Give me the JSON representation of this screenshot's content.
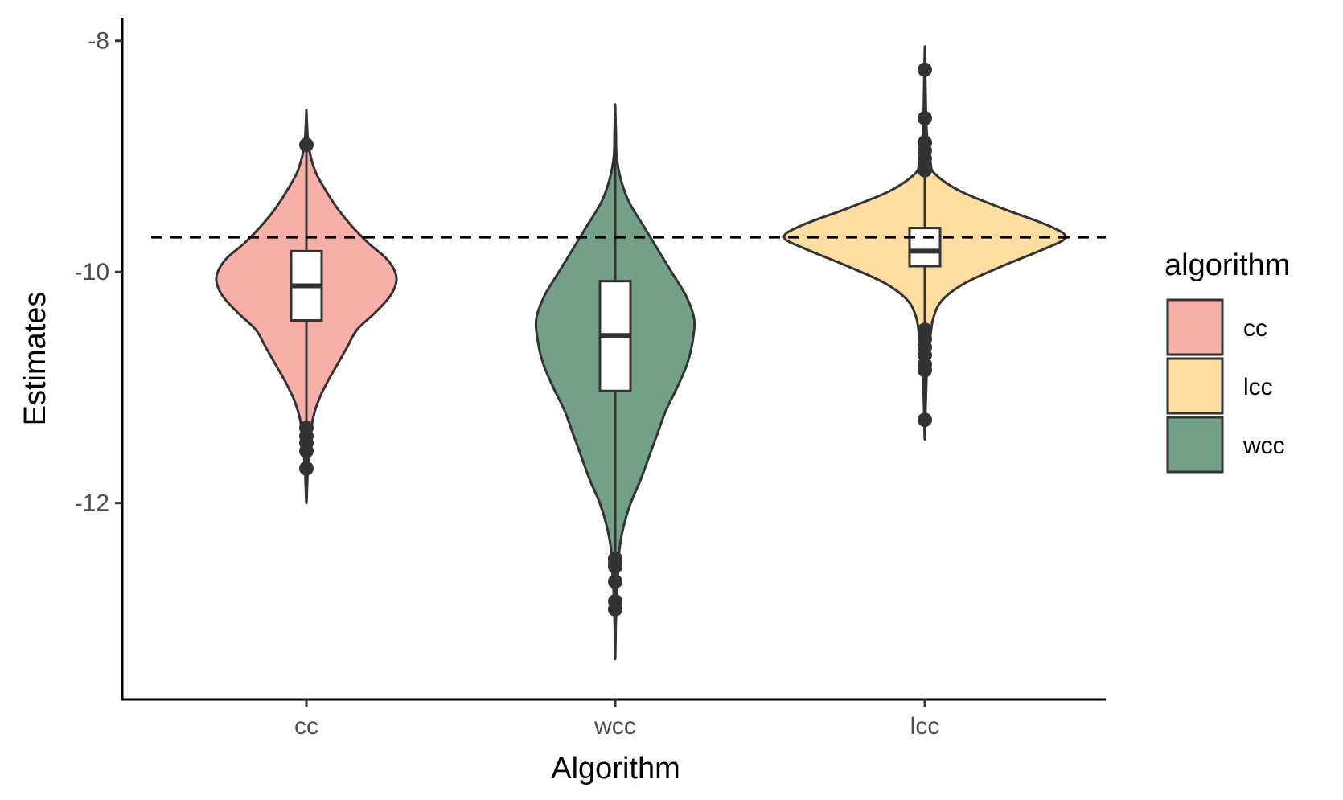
{
  "chart_data": {
    "type": "violin",
    "xlabel": "Algorithm",
    "ylabel": "Estimates",
    "categories": [
      "cc",
      "wcc",
      "lcc"
    ],
    "yticks": [
      -8,
      -10,
      -12
    ],
    "yticks_labels": [
      "-8",
      "-10",
      "-12"
    ],
    "ylim": [
      -13.7,
      -7.8
    ],
    "reference_line": {
      "y": -9.7,
      "style": "dashed"
    },
    "grid": false,
    "legend": {
      "title": "algorithm",
      "position": "right",
      "entries": [
        {
          "label": "cc",
          "color": "#F8AFA8"
        },
        {
          "label": "lcc",
          "color": "#FDDDA0"
        },
        {
          "label": "wcc",
          "color": "#74A089"
        }
      ]
    },
    "series": [
      {
        "category": "cc",
        "color": "#F8AFA8",
        "violin": {
          "y": [
            -8.6,
            -8.85,
            -9.0,
            -9.15,
            -9.3,
            -9.45,
            -9.6,
            -9.75,
            -9.9,
            -10.05,
            -10.2,
            -10.35,
            -10.5,
            -10.65,
            -10.8,
            -10.95,
            -11.1,
            -11.25,
            -11.4,
            -11.55,
            -11.7,
            -11.85,
            -12.0
          ],
          "half_width": [
            0.0,
            0.01,
            0.03,
            0.07,
            0.14,
            0.22,
            0.32,
            0.44,
            0.58,
            0.64,
            0.6,
            0.49,
            0.36,
            0.29,
            0.22,
            0.15,
            0.09,
            0.05,
            0.03,
            0.02,
            0.01,
            0.005,
            0.0
          ]
        },
        "box": {
          "q1": -10.42,
          "median": -10.12,
          "q3": -9.82
        },
        "whisker": {
          "min": -12.0,
          "max": -8.6
        },
        "outliers": [
          -8.9,
          -11.35,
          -11.42,
          -11.48,
          -11.55,
          -11.7
        ]
      },
      {
        "category": "wcc",
        "color": "#74A089",
        "violin": {
          "y": [
            -8.55,
            -8.8,
            -9.0,
            -9.2,
            -9.4,
            -9.6,
            -9.8,
            -10.0,
            -10.2,
            -10.4,
            -10.6,
            -10.8,
            -11.0,
            -11.2,
            -11.4,
            -11.6,
            -11.8,
            -12.0,
            -12.2,
            -12.4,
            -12.6,
            -12.8,
            -13.0,
            -13.2,
            -13.35
          ],
          "half_width": [
            0.0,
            0.005,
            0.01,
            0.04,
            0.1,
            0.2,
            0.3,
            0.4,
            0.5,
            0.56,
            0.55,
            0.51,
            0.44,
            0.36,
            0.3,
            0.24,
            0.18,
            0.11,
            0.06,
            0.03,
            0.02,
            0.01,
            0.005,
            0.002,
            0.0
          ]
        },
        "box": {
          "q1": -11.03,
          "median": -10.55,
          "q3": -10.08
        },
        "whisker": {
          "min": -13.35,
          "max": -8.55
        },
        "outliers": [
          -12.48,
          -12.52,
          -12.55,
          -12.68,
          -12.85,
          -12.92
        ]
      },
      {
        "category": "lcc",
        "color": "#FDDDA0",
        "violin": {
          "y": [
            -8.05,
            -8.4,
            -8.7,
            -8.9,
            -9.05,
            -9.15,
            -9.3,
            -9.45,
            -9.6,
            -9.7,
            -9.8,
            -9.95,
            -10.1,
            -10.25,
            -10.4,
            -10.55,
            -10.7,
            -10.85,
            -11.0,
            -11.2,
            -11.45
          ],
          "half_width": [
            0.0,
            0.005,
            0.01,
            0.02,
            0.04,
            0.07,
            0.25,
            0.55,
            0.88,
            1.0,
            0.85,
            0.55,
            0.28,
            0.12,
            0.06,
            0.04,
            0.02,
            0.015,
            0.01,
            0.005,
            0.0
          ]
        },
        "box": {
          "q1": -9.95,
          "median": -9.82,
          "q3": -9.62
        },
        "whisker": {
          "min": -11.45,
          "max": -8.05
        },
        "outliers": [
          -8.25,
          -8.67,
          -8.88,
          -8.95,
          -9.02,
          -9.1,
          -9.12,
          -10.5,
          -10.58,
          -10.65,
          -10.72,
          -10.8,
          -10.85,
          -11.28
        ]
      }
    ]
  }
}
